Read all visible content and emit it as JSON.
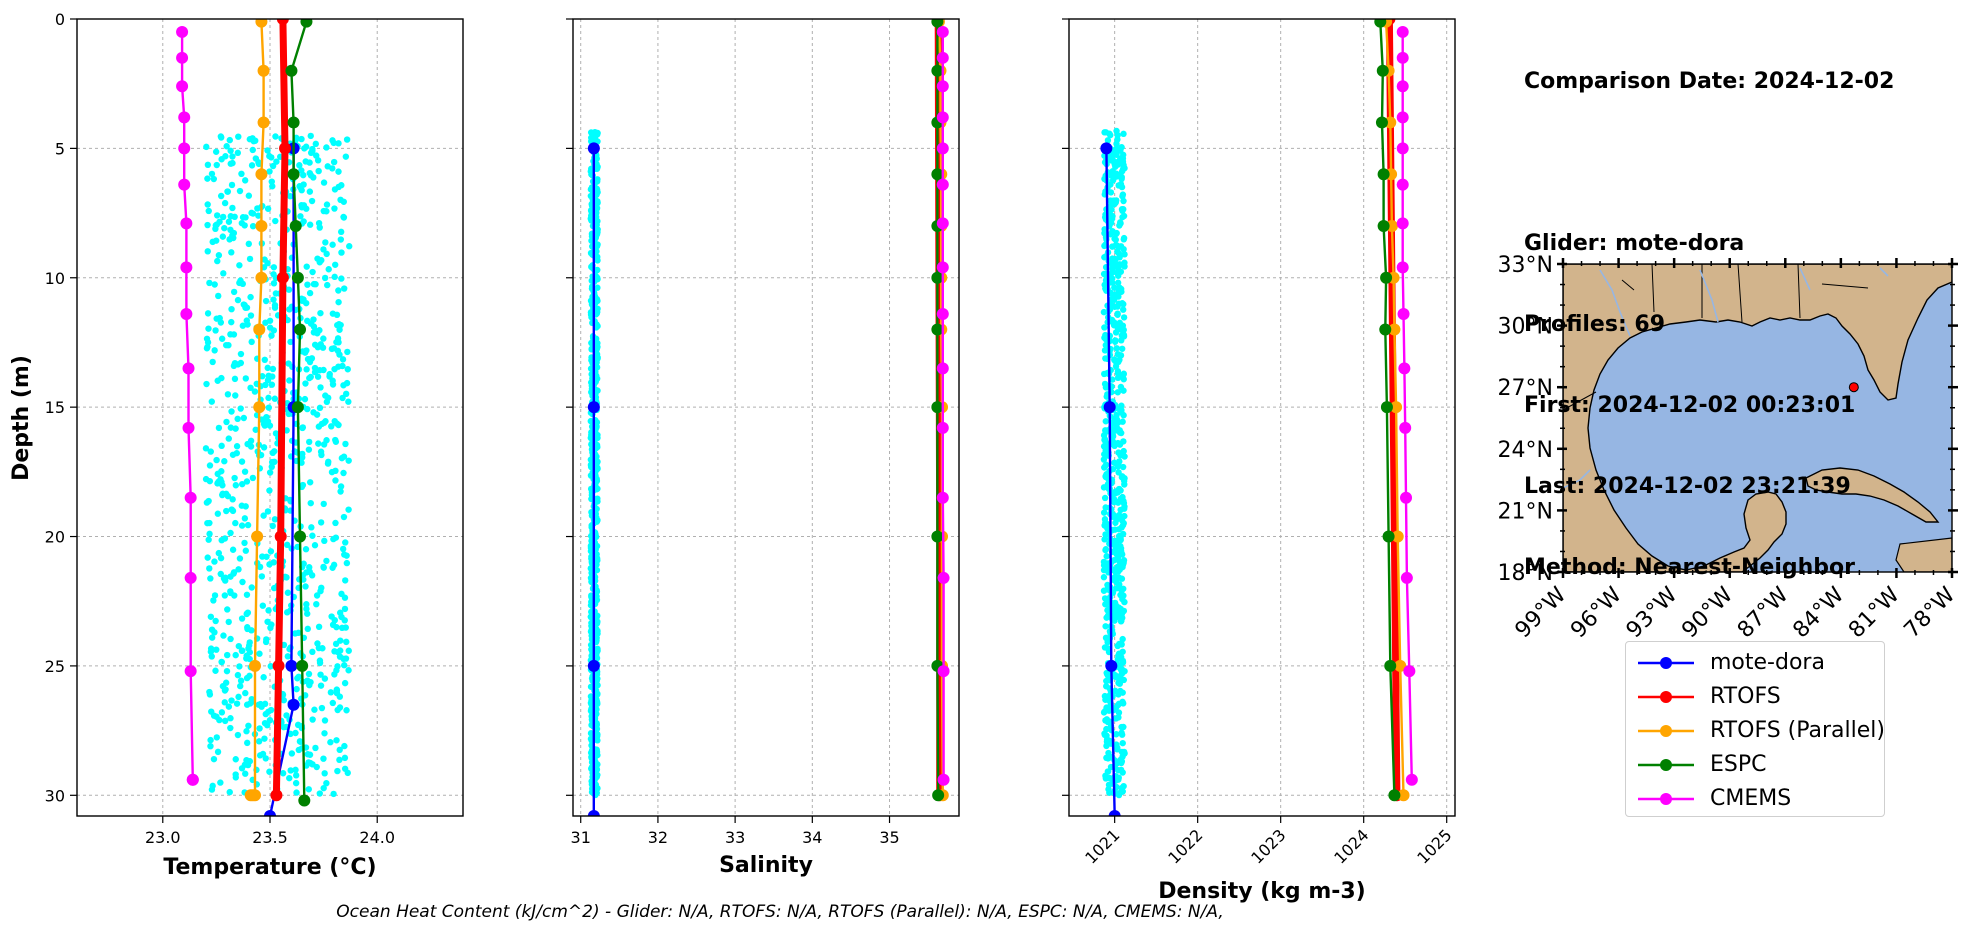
{
  "info": {
    "comparison_date": "Comparison Date: 2024-12-02",
    "glider": "Glider: mote-dora",
    "profiles": "Profiles: 69",
    "first": "First: 2024-12-02 00:23:01",
    "last": "Last: 2024-12-02 23:21:39",
    "method": "Method: Nearest-Neighbor"
  },
  "footer": "Ocean Heat Content (kJ/cm^2) - Glider: N/A,  RTOFS: N/A,  RTOFS (Parallel): N/A,  ESPC: N/A,  CMEMS: N/A,",
  "legend": [
    {
      "name": "mote-dora",
      "color": "#0000ff"
    },
    {
      "name": "RTOFS",
      "color": "#ff0000"
    },
    {
      "name": "RTOFS (Parallel)",
      "color": "#ffa500"
    },
    {
      "name": "ESPC",
      "color": "#008000"
    },
    {
      "name": "CMEMS",
      "color": "#ff00ff"
    }
  ],
  "chart_data": [
    {
      "type": "line",
      "xlabel": "Temperature (°C)",
      "ylabel": "Depth (m)",
      "xlim": [
        22.6,
        24.4
      ],
      "ylim": [
        30.8,
        0
      ],
      "xticks": [
        "23.0",
        "23.5",
        "24.0"
      ],
      "yticks": [
        "0",
        "5",
        "10",
        "15",
        "20",
        "25",
        "30"
      ],
      "grid": true,
      "scatter": {
        "name": "glider points",
        "color": "#00ffff",
        "xrange": [
          23.2,
          23.87
        ],
        "depth_range": [
          4.5,
          30
        ]
      },
      "series": [
        {
          "name": "mote-dora",
          "color": "#0000ff",
          "x": [
            23.61,
            23.61,
            23.6,
            23.61,
            23.5
          ],
          "depth": [
            5,
            15,
            25,
            26.5,
            30.8
          ]
        },
        {
          "name": "RTOFS",
          "color": "#ff0000",
          "x": [
            23.56,
            23.57,
            23.56,
            23.55,
            23.54,
            23.53
          ],
          "depth": [
            0,
            5,
            10,
            20,
            25,
            30
          ]
        },
        {
          "name": "RTOFS (Parallel)",
          "color": "#ffa500",
          "x": [
            23.46,
            23.47,
            23.47,
            23.46,
            23.46,
            23.46,
            23.45,
            23.45,
            23.44,
            23.43,
            23.43,
            23.42,
            23.41
          ],
          "depth": [
            0.1,
            2,
            4,
            6,
            8,
            10,
            12,
            15,
            20,
            25,
            30,
            30,
            30
          ]
        },
        {
          "name": "ESPC",
          "color": "#008000",
          "x": [
            23.67,
            23.6,
            23.61,
            23.61,
            23.62,
            23.63,
            23.64,
            23.63,
            23.64,
            23.65,
            23.66
          ],
          "depth": [
            0.1,
            2,
            4,
            6,
            8,
            10,
            12,
            15,
            20,
            25,
            30.2
          ]
        },
        {
          "name": "CMEMS",
          "color": "#ff00ff",
          "x": [
            23.09,
            23.09,
            23.09,
            23.1,
            23.1,
            23.1,
            23.11,
            23.11,
            23.11,
            23.12,
            23.12,
            23.13,
            23.13,
            23.13,
            23.14,
            23.14
          ],
          "depth": [
            0.5,
            1.5,
            2.6,
            3.8,
            5,
            6.4,
            7.9,
            9.6,
            11.4,
            13.5,
            15.8,
            18.5,
            21.6,
            25.2,
            29.4,
            29.4
          ]
        }
      ]
    },
    {
      "type": "line",
      "xlabel": "Salinity",
      "xlim": [
        30.9,
        35.9
      ],
      "ylim": [
        30.8,
        0
      ],
      "xticks": [
        "31",
        "32",
        "33",
        "34",
        "35"
      ],
      "grid": true,
      "scatter": {
        "name": "glider points",
        "color": "#00ffff",
        "xrange": [
          31.13,
          31.22
        ],
        "depth_range": [
          4.3,
          30
        ]
      },
      "series": [
        {
          "name": "mote-dora",
          "color": "#0000ff",
          "x": [
            31.17,
            31.17,
            31.17,
            31.17
          ],
          "depth": [
            5,
            15,
            25,
            30.8
          ]
        },
        {
          "name": "RTOFS",
          "color": "#ff0000",
          "x": [
            35.63,
            35.64,
            35.65,
            35.65
          ],
          "depth": [
            0,
            10,
            20,
            30
          ]
        },
        {
          "name": "RTOFS (Parallel)",
          "color": "#ffa500",
          "x": [
            35.64,
            35.66,
            35.66,
            35.67,
            35.67,
            35.67,
            35.67,
            35.68,
            35.68,
            35.68,
            35.69
          ],
          "depth": [
            0.1,
            2,
            4,
            6,
            8,
            10,
            12,
            15,
            20,
            25,
            30
          ]
        },
        {
          "name": "ESPC",
          "color": "#008000",
          "x": [
            35.62,
            35.62,
            35.62,
            35.62,
            35.62,
            35.62,
            35.62,
            35.62,
            35.62,
            35.62,
            35.63
          ],
          "depth": [
            0.1,
            2,
            4,
            6,
            8,
            10,
            12,
            15,
            20,
            25,
            30
          ]
        },
        {
          "name": "CMEMS",
          "color": "#ff00ff",
          "x": [
            35.69,
            35.69,
            35.69,
            35.69,
            35.69,
            35.69,
            35.69,
            35.69,
            35.69,
            35.69,
            35.69,
            35.69,
            35.7,
            35.7,
            35.7
          ],
          "depth": [
            0.5,
            1.5,
            2.6,
            3.8,
            5,
            6.4,
            7.9,
            9.6,
            11.4,
            13.5,
            15.8,
            18.5,
            21.6,
            25.2,
            29.4
          ]
        }
      ]
    },
    {
      "type": "line",
      "xlabel": "Density (kg m-3)",
      "xlim": [
        1020.45,
        1025.1
      ],
      "ylim": [
        30.8,
        0
      ],
      "xticks": [
        "1021",
        "1022",
        "1023",
        "1024",
        "1025"
      ],
      "grid": true,
      "scatter": {
        "name": "glider points",
        "color": "#00ffff",
        "xrange": [
          1020.87,
          1021.12
        ],
        "depth_range": [
          4.3,
          30
        ]
      },
      "series": [
        {
          "name": "mote-dora",
          "color": "#0000ff",
          "x": [
            1020.9,
            1020.94,
            1020.96,
            1021.0
          ],
          "depth": [
            5,
            15,
            25,
            30.8
          ]
        },
        {
          "name": "RTOFS",
          "color": "#ff0000",
          "x": [
            1024.31,
            1024.34,
            1024.37,
            1024.4
          ],
          "depth": [
            0,
            10,
            20,
            30
          ]
        },
        {
          "name": "RTOFS (Parallel)",
          "color": "#ffa500",
          "x": [
            1024.27,
            1024.3,
            1024.32,
            1024.33,
            1024.34,
            1024.36,
            1024.37,
            1024.39,
            1024.41,
            1024.44,
            1024.48
          ],
          "depth": [
            0.1,
            2,
            4,
            6,
            8,
            10,
            12,
            15,
            20,
            25,
            30
          ]
        },
        {
          "name": "ESPC",
          "color": "#008000",
          "x": [
            1024.2,
            1024.23,
            1024.22,
            1024.24,
            1024.24,
            1024.27,
            1024.26,
            1024.28,
            1024.3,
            1024.32,
            1024.37
          ],
          "depth": [
            0.1,
            2,
            4,
            6,
            8,
            10,
            12,
            15,
            20,
            25,
            30
          ]
        },
        {
          "name": "CMEMS",
          "color": "#ff00ff",
          "x": [
            1024.47,
            1024.47,
            1024.47,
            1024.47,
            1024.47,
            1024.47,
            1024.47,
            1024.47,
            1024.48,
            1024.49,
            1024.5,
            1024.51,
            1024.52,
            1024.55,
            1024.58
          ],
          "depth": [
            0.5,
            1.5,
            2.6,
            3.8,
            5,
            6.4,
            7.9,
            9.6,
            11.4,
            13.5,
            15.8,
            18.5,
            21.6,
            25.2,
            29.4
          ]
        }
      ]
    },
    {
      "type": "map",
      "lon_range": [
        -99,
        -78
      ],
      "lat_range": [
        18,
        33
      ],
      "xticks": [
        "99°W",
        "96°W",
        "93°W",
        "90°W",
        "87°W",
        "84°W",
        "81°W",
        "78°W"
      ],
      "yticks": [
        "33°N",
        "30°N",
        "27°N",
        "24°N",
        "21°N",
        "18°N"
      ],
      "glider_position": {
        "lon": -83.3,
        "lat": 27.0
      },
      "land_color": "#d2b48c",
      "water_color": "#96b6e3"
    }
  ]
}
